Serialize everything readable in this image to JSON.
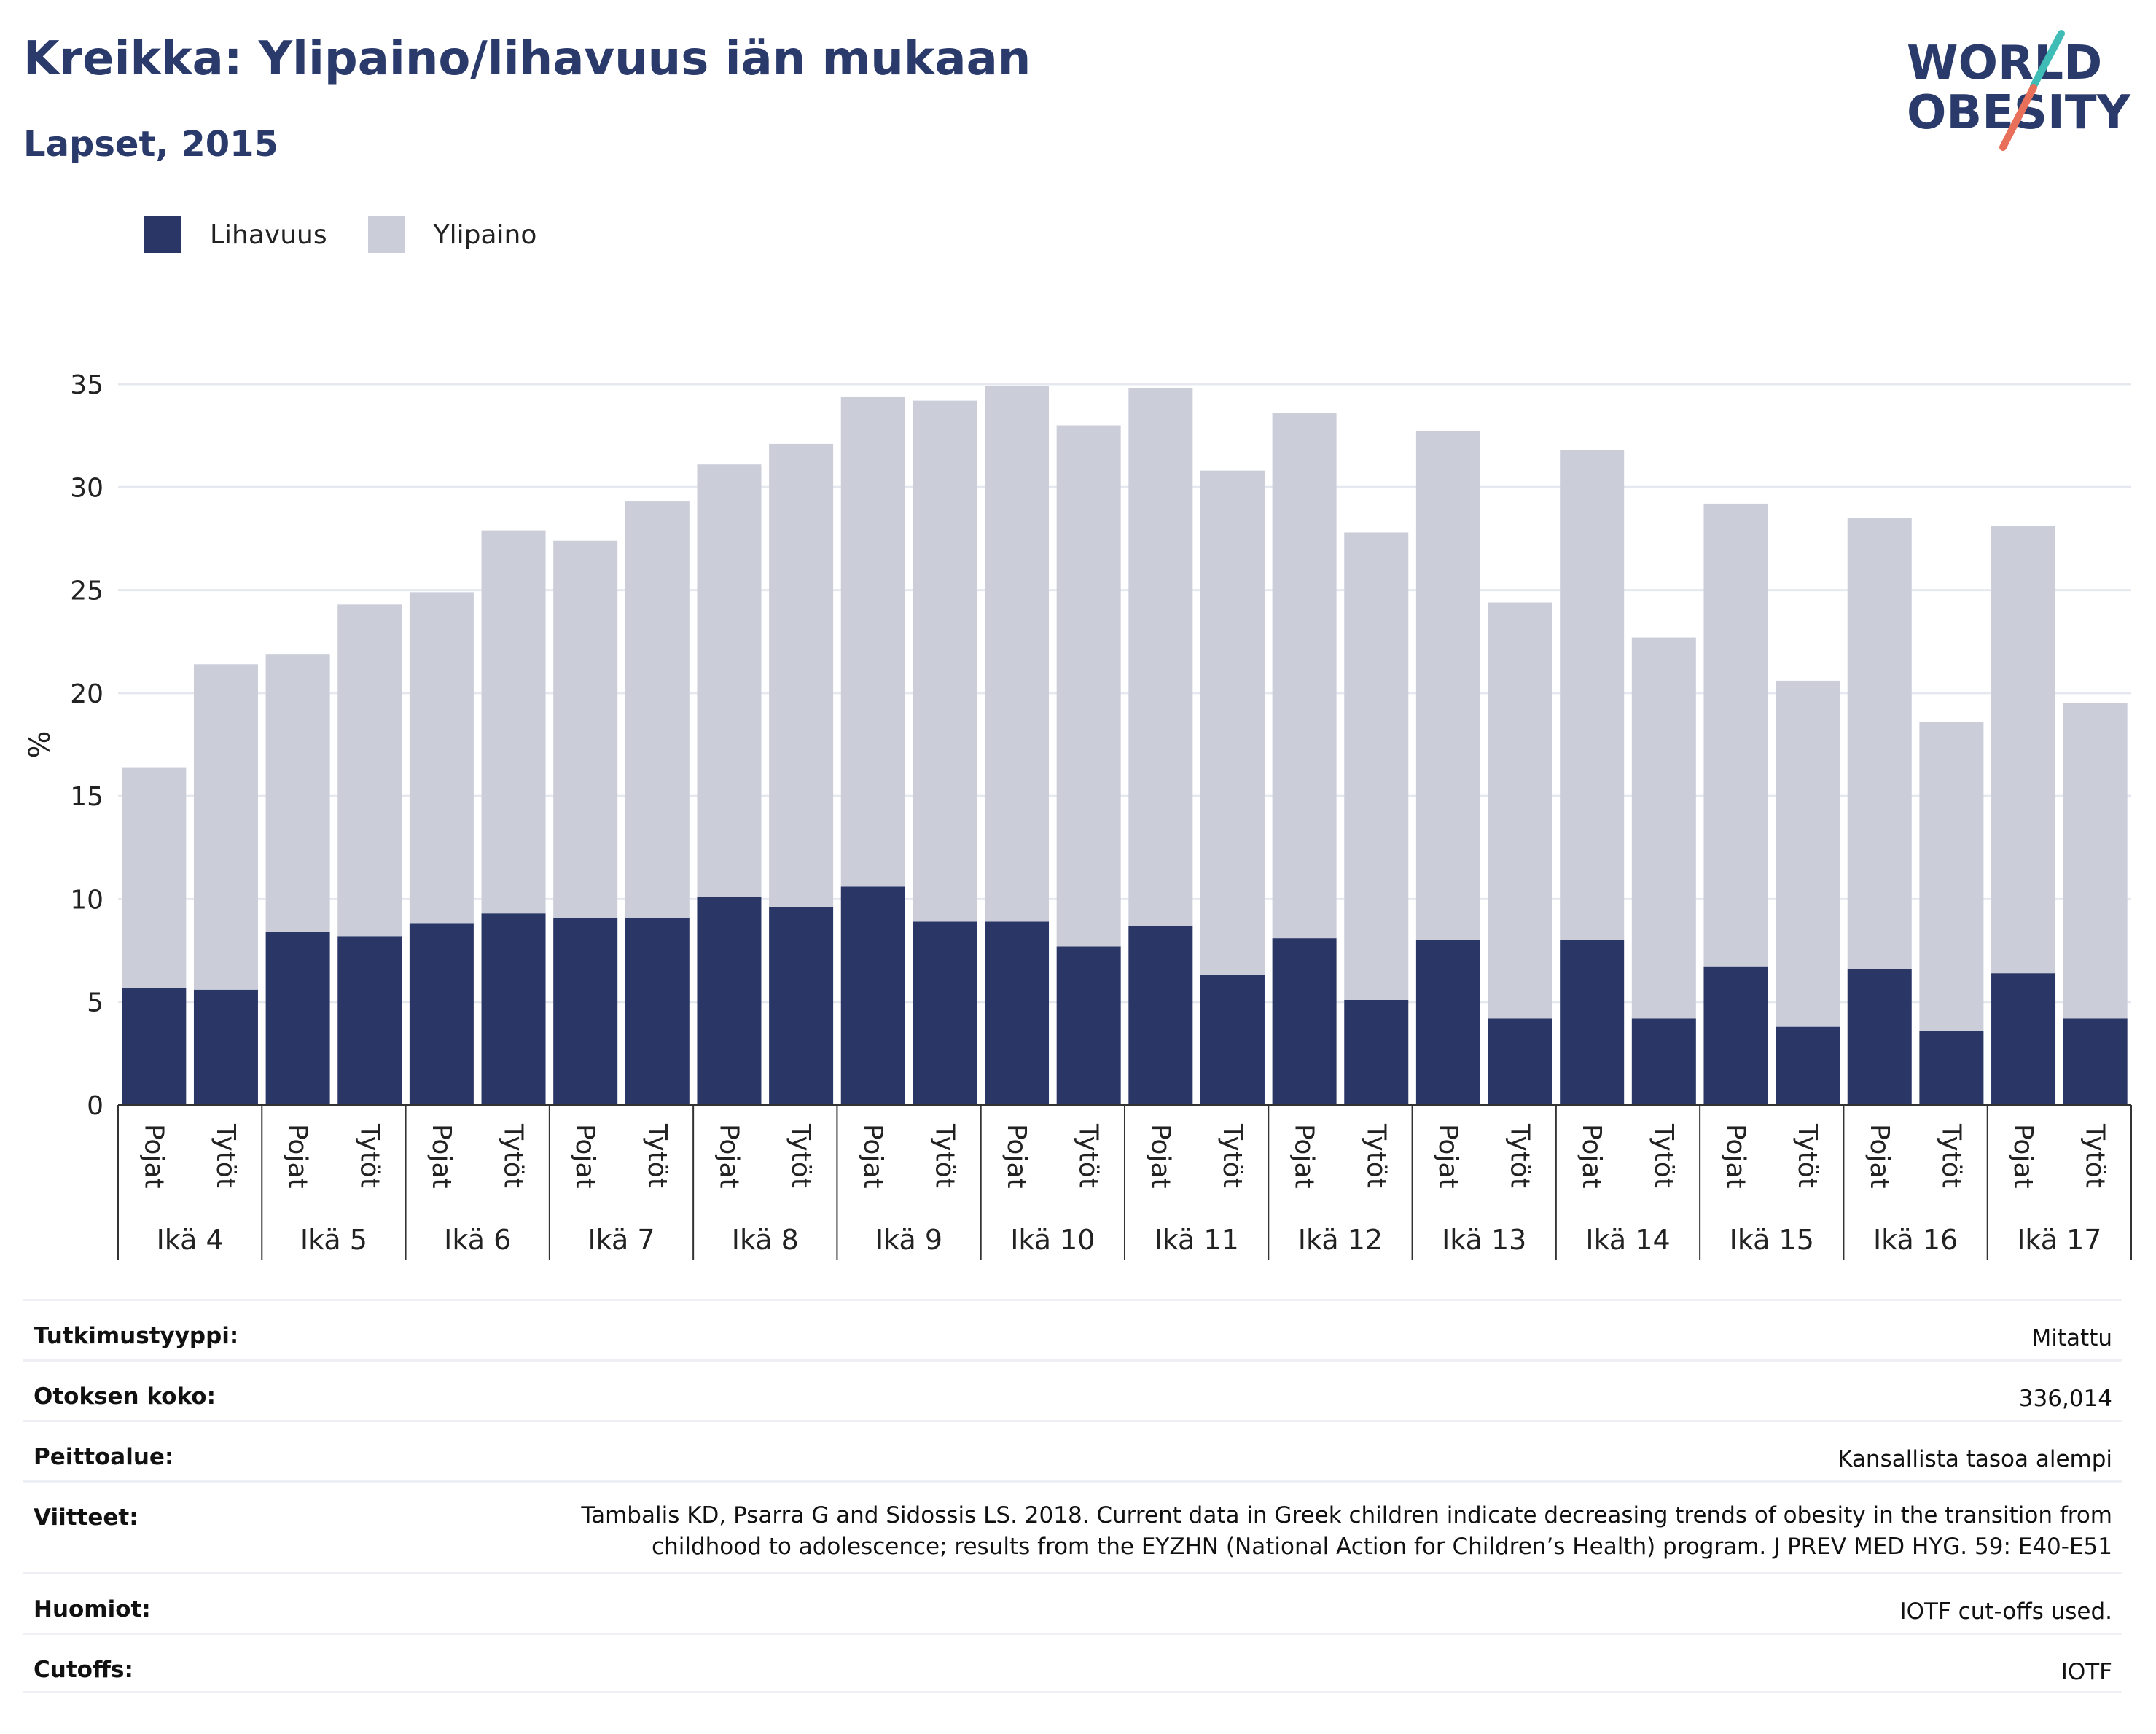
{
  "title": "Kreikka: Ylipaino/lihavuus iän mukaan",
  "subtitle": "Lapset, 2015",
  "logo": {
    "line1": "WORLD",
    "line2": "OBESITY"
  },
  "colors": {
    "obesity": "#2a3766",
    "overweight": "#cbcdd9",
    "title": "#2a3a6b",
    "grid": "#e6e8ef",
    "accent_teal": "#3fbcb5",
    "accent_coral": "#e8705a"
  },
  "legend": [
    {
      "label": "Lihavuus",
      "color": "#2a3766"
    },
    {
      "label": "Ylipaino",
      "color": "#cbcdd9"
    }
  ],
  "chart_data": {
    "type": "bar",
    "stacked": true,
    "ylabel": "%",
    "ylim": [
      0,
      35
    ],
    "yticks": [
      0,
      5,
      10,
      15,
      20,
      25,
      30,
      35
    ],
    "grid": true,
    "groups": [
      "Ikä 4",
      "Ikä 5",
      "Ikä 6",
      "Ikä 7",
      "Ikä 8",
      "Ikä 9",
      "Ikä 10",
      "Ikä 11",
      "Ikä 12",
      "Ikä 13",
      "Ikä 14",
      "Ikä 15",
      "Ikä 16",
      "Ikä 17"
    ],
    "subcategories": [
      "Pojat",
      "Tytöt"
    ],
    "series": [
      {
        "name": "Lihavuus",
        "values": [
          5.7,
          5.6,
          8.4,
          8.2,
          8.8,
          9.3,
          9.1,
          9.1,
          10.1,
          9.6,
          10.6,
          8.9,
          8.9,
          7.7,
          8.7,
          6.3,
          8.1,
          5.1,
          8.0,
          4.2,
          8.0,
          4.2,
          6.7,
          3.8,
          6.6,
          3.6,
          6.4,
          4.2
        ]
      },
      {
        "name": "Ylipaino",
        "values": [
          10.7,
          15.8,
          13.5,
          16.1,
          16.1,
          18.6,
          18.3,
          20.2,
          21.0,
          22.5,
          23.8,
          25.3,
          26.0,
          25.3,
          26.1,
          24.5,
          25.5,
          22.7,
          24.7,
          20.2,
          23.8,
          18.5,
          22.5,
          16.8,
          21.9,
          15.0,
          21.7,
          15.3
        ]
      }
    ]
  },
  "info": [
    {
      "label": "Tutkimustyyppi:",
      "value": "Mitattu"
    },
    {
      "label": "Otoksen koko:",
      "value": "336,014"
    },
    {
      "label": "Peittoalue:",
      "value": "Kansallista tasoa alempi"
    },
    {
      "label": "Viitteet:",
      "value": "Tambalis KD, Psarra G and Sidossis LS. 2018. Current data in Greek children indicate decreasing trends of obesity in the transition from childhood to adolescence; results from the EYZHN (National Action for Children’s Health) program. J PREV MED HYG. 59: E40-E51"
    },
    {
      "label": "Huomiot:",
      "value": "IOTF cut-offs used."
    },
    {
      "label": "Cutoffs:",
      "value": "IOTF"
    }
  ]
}
